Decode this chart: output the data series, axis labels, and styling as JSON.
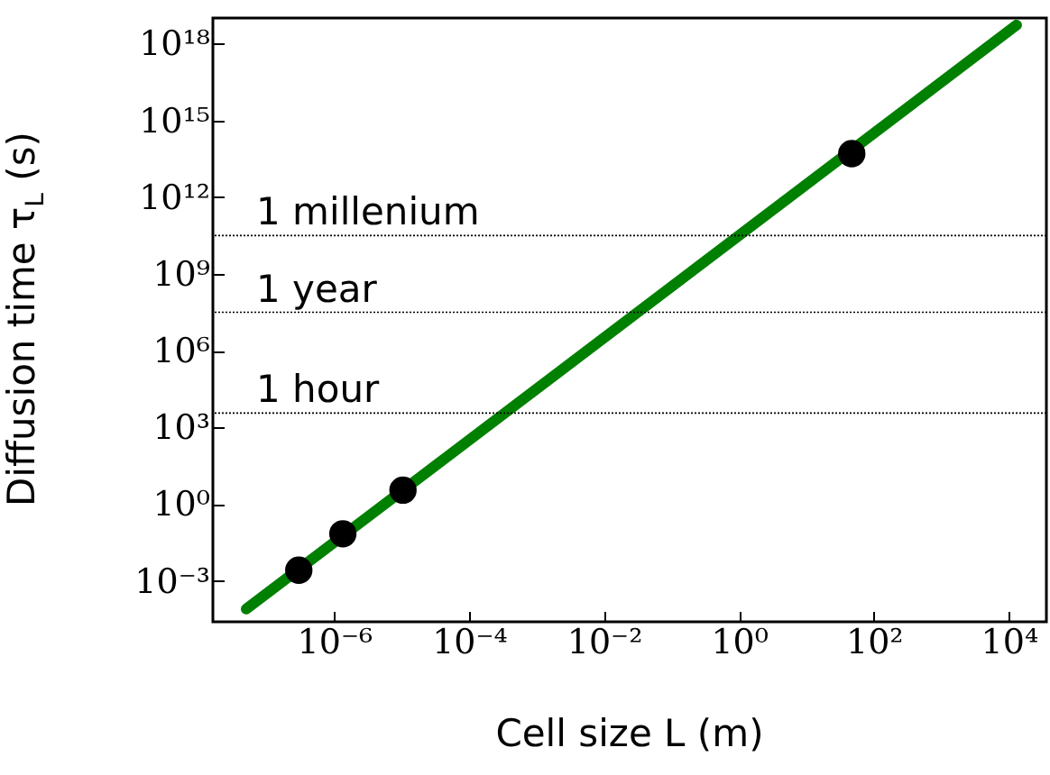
{
  "chart_data": {
    "type": "line",
    "xlabel": "Cell size L (m)",
    "ylabel": "Diffusion time τ$_{L}$ (s)",
    "log": "xy",
    "xlim": [
      1.6e-08,
      36000
    ],
    "ylim": [
      2.5e-05,
      1e+19
    ],
    "xticks": [
      {
        "value": 1e-06,
        "label": "10⁻⁶"
      },
      {
        "value": 0.0001,
        "label": "10⁻⁴"
      },
      {
        "value": 0.01,
        "label": "10⁻²"
      },
      {
        "value": 1,
        "label": "10⁰"
      },
      {
        "value": 100,
        "label": "10²"
      },
      {
        "value": 10000,
        "label": "10⁴"
      }
    ],
    "yticks": [
      {
        "value": 0.001,
        "label": "10⁻³"
      },
      {
        "value": 1,
        "label": "10⁰"
      },
      {
        "value": 1000,
        "label": "10³"
      },
      {
        "value": 1000000.0,
        "label": "10⁶"
      },
      {
        "value": 1000000000.0,
        "label": "10⁹"
      },
      {
        "value": 1000000000000.0,
        "label": "10¹²"
      },
      {
        "value": 1000000000000000.0,
        "label": "10¹⁵"
      },
      {
        "value": 1e+18,
        "label": "10¹⁸"
      }
    ],
    "series": [
      {
        "color": "#008000",
        "line_style": "solid",
        "marker": "none",
        "x": [
          5e-08,
          13000
        ],
        "values": [
          7.9e-05,
          5.3e+18
        ]
      },
      {
        "type": "scatter",
        "color": "#000000",
        "marker": "circle",
        "x": [
          3e-07,
          1.35e-06,
          1.05e-05,
          47
        ],
        "values": [
          0.0026,
          0.069,
          3.5,
          50000000000000.0
        ]
      }
    ],
    "ref_lines": [
      {
        "axis": "y",
        "value": 31500000000.0,
        "label": "1 millenium",
        "color": "#000000",
        "line_style": "dotted"
      },
      {
        "axis": "y",
        "value": 31500000.0,
        "label": "1 year",
        "color": "#000000",
        "line_style": "dotted"
      },
      {
        "axis": "y",
        "value": 3600,
        "label": "1 hour",
        "color": "#000000",
        "line_style": "dotted"
      }
    ]
  }
}
